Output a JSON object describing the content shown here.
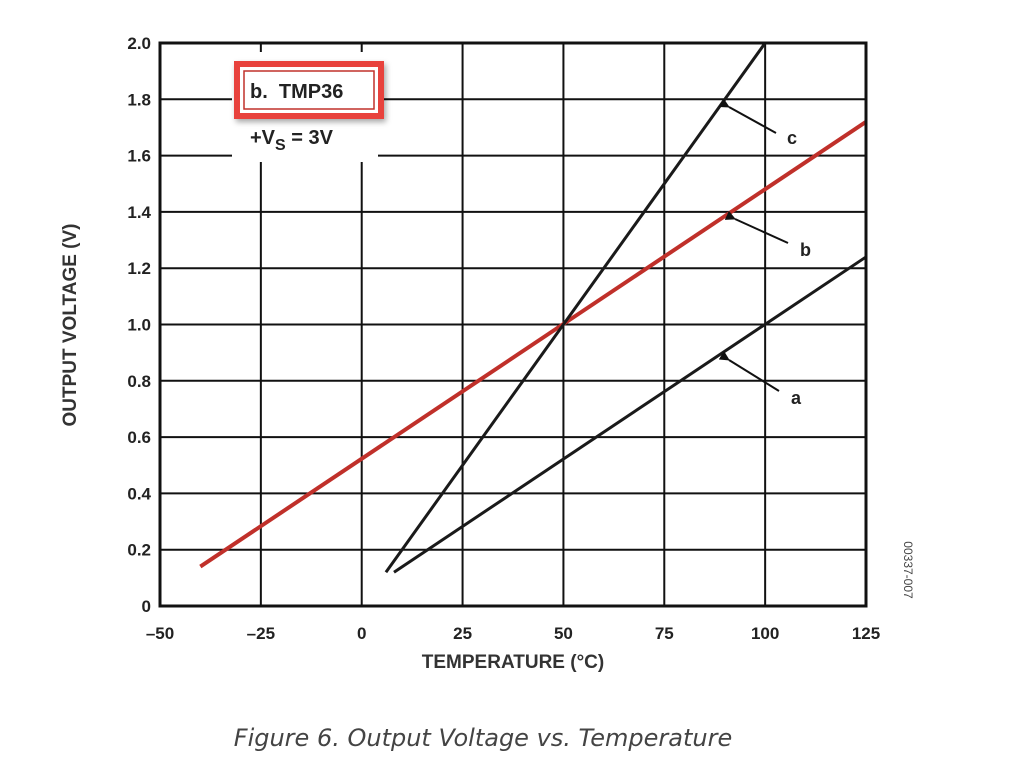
{
  "chart_data": {
    "type": "line",
    "title": "",
    "caption": "Figure 6. Output Voltage vs. Temperature",
    "xlabel": "TEMPERATURE (°C)",
    "ylabel": "OUTPUT VOLTAGE (V)",
    "xlim": [
      -50,
      125
    ],
    "ylim": [
      0,
      2.0
    ],
    "xticks": [
      -50,
      -25,
      0,
      25,
      50,
      75,
      100,
      125
    ],
    "xtick_labels": [
      "–50",
      "–25",
      "0",
      "25",
      "50",
      "75",
      "100",
      "125"
    ],
    "yticks": [
      0,
      0.2,
      0.4,
      0.6,
      0.8,
      1.0,
      1.2,
      1.4,
      1.6,
      1.8,
      2.0
    ],
    "ytick_labels": [
      "0",
      "0.2",
      "0.4",
      "0.6",
      "0.8",
      "1.0",
      "1.2",
      "1.4",
      "1.6",
      "1.8",
      "2.0"
    ],
    "grid": true,
    "legend": {
      "placement": "top-left",
      "highlighted_entry": "b.  TMP36",
      "supply_label": "+V",
      "supply_subscript": "S",
      "supply_value": " = 3V"
    },
    "series": [
      {
        "name": "a",
        "color": "#1a1a1a",
        "x": [
          8,
          125
        ],
        "y": [
          0.12,
          1.24
        ]
      },
      {
        "name": "b",
        "color": "#c0302a",
        "x": [
          -40,
          125
        ],
        "y": [
          0.14,
          1.72
        ]
      },
      {
        "name": "c",
        "color": "#1a1a1a",
        "x": [
          6,
          100
        ],
        "y": [
          0.12,
          2.0
        ]
      }
    ],
    "annotations": [
      "a",
      "b",
      "c"
    ],
    "figure_id": "00337-007",
    "highlight_color": "#e8423c"
  }
}
